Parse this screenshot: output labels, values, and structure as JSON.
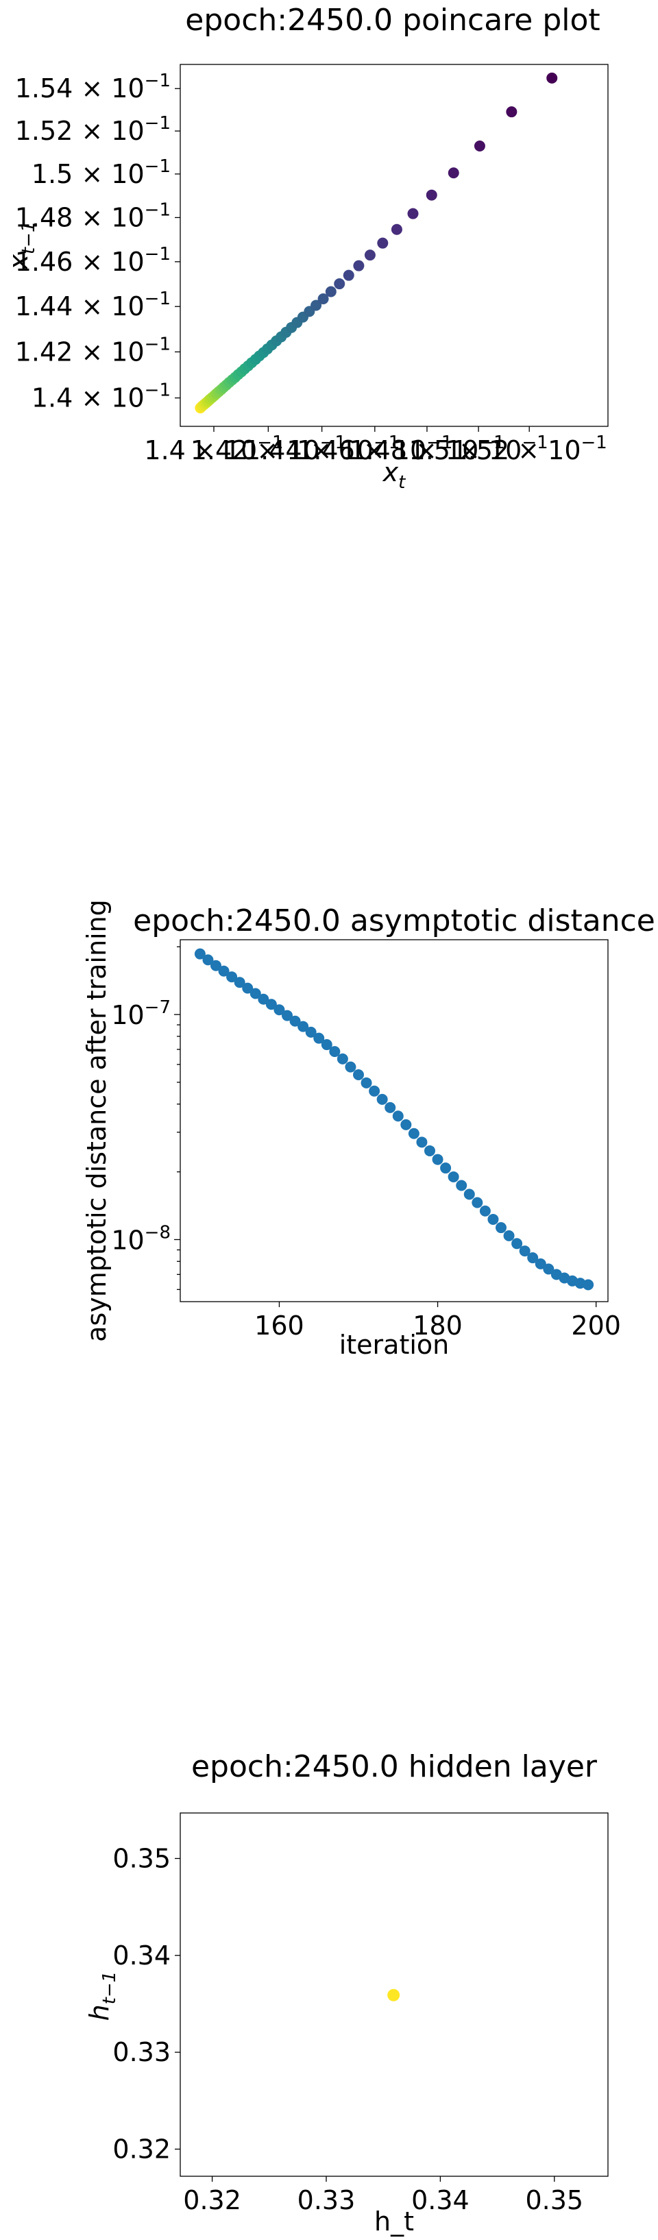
{
  "chart_data": [
    {
      "type": "scatter",
      "title": "epoch:2450.0 poincare plot",
      "xlabel_main": "x",
      "xlabel_sub": "t",
      "ylabel_main": "x",
      "ylabel_sub": "t−1",
      "scale": "log",
      "xlim": [
        0.13878,
        0.15515
      ],
      "ylim": [
        0.13878,
        0.15515
      ],
      "yticks": [
        {
          "value": 0.154,
          "mant": "1.54 × 10",
          "exp": "−1"
        },
        {
          "value": 0.152,
          "mant": "1.52 × 10",
          "exp": "−1"
        },
        {
          "value": 0.15,
          "mant": "1.5 × 10",
          "exp": "−1"
        },
        {
          "value": 0.148,
          "mant": "1.48 × 10",
          "exp": "−1"
        },
        {
          "value": 0.146,
          "mant": "1.46 × 10",
          "exp": "−1"
        },
        {
          "value": 0.144,
          "mant": "1.44 × 10",
          "exp": "−1"
        },
        {
          "value": 0.142,
          "mant": "1.42 × 10",
          "exp": "−1"
        },
        {
          "value": 0.14,
          "mant": "1.4 × 10",
          "exp": "−1"
        }
      ],
      "xticks": [
        {
          "value": 0.14,
          "mant": "1.4 × 10",
          "exp": "−1"
        },
        {
          "value": 0.142,
          "mant": "1.42 × 10",
          "exp": "−1"
        },
        {
          "value": 0.144,
          "mant": "1.44 × 10",
          "exp": "−1"
        },
        {
          "value": 0.146,
          "mant": "1.46 × 10",
          "exp": "−1"
        },
        {
          "value": 0.148,
          "mant": "1.48 × 10",
          "exp": "−1"
        },
        {
          "value": 0.15,
          "mant": "1.5 × 10",
          "exp": "−1"
        },
        {
          "value": 0.152,
          "mant": "1.52 × 10",
          "exp": "−1"
        }
      ],
      "x": [
        0.13951,
        0.13957,
        0.13964,
        0.13971,
        0.13978,
        0.13985,
        0.13993,
        0.14001,
        0.14009,
        0.14018,
        0.14027,
        0.14036,
        0.14046,
        0.14056,
        0.14067,
        0.14078,
        0.14089,
        0.14101,
        0.14113,
        0.14126,
        0.14139,
        0.14153,
        0.14167,
        0.14182,
        0.14197,
        0.14213,
        0.1423,
        0.14248,
        0.14266,
        0.14286,
        0.14307,
        0.14329,
        0.14353,
        0.14378,
        0.14405,
        0.14434,
        0.14466,
        0.14501,
        0.14539,
        0.14582,
        0.1463,
        0.14684,
        0.14746,
        0.14818,
        0.14903,
        0.15005,
        0.1513,
        0.1529
      ],
      "y": [
        0.13957,
        0.13964,
        0.13971,
        0.13978,
        0.13985,
        0.13993,
        0.14001,
        0.14009,
        0.14018,
        0.14027,
        0.14036,
        0.14046,
        0.14056,
        0.14067,
        0.14078,
        0.14089,
        0.14101,
        0.14113,
        0.14126,
        0.14139,
        0.14153,
        0.14167,
        0.14182,
        0.14197,
        0.14213,
        0.1423,
        0.14248,
        0.14266,
        0.14286,
        0.14307,
        0.14329,
        0.14353,
        0.14378,
        0.14405,
        0.14434,
        0.14466,
        0.14501,
        0.14539,
        0.14582,
        0.1463,
        0.14684,
        0.14746,
        0.14818,
        0.14903,
        0.15005,
        0.1513,
        0.1529,
        0.1545
      ],
      "colormap": [
        "#fde725",
        "#b5de2b",
        "#6ece58",
        "#35b779",
        "#1f9e89",
        "#26828e",
        "#31688e",
        "#3e4989",
        "#482878",
        "#440154"
      ]
    },
    {
      "type": "scatter",
      "title": "epoch:2450.0 asymptotic distance",
      "xlabel": "iteration",
      "ylabel": "asymptotic distance after training",
      "yscale": "log",
      "xlim": [
        147.5,
        201.5
      ],
      "ylim": [
        5.3e-09,
        2.15e-07
      ],
      "color": "#1f77b4",
      "xticks": [
        160,
        180,
        200
      ],
      "yticks": [
        {
          "value": 1e-07,
          "mant": "10",
          "exp": "−7"
        },
        {
          "value": 1e-08,
          "mant": "10",
          "exp": "−8"
        }
      ],
      "x_start": 150,
      "x_end": 199,
      "y_values": [
        1.86e-07,
        1.75e-07,
        1.65e-07,
        1.56e-07,
        1.47e-07,
        1.39e-07,
        1.31e-07,
        1.24e-07,
        1.17e-07,
        1.11e-07,
        1.05e-07,
        9.9e-08,
        9.35e-08,
        8.85e-08,
        8.35e-08,
        7.85e-08,
        7.35e-08,
        6.85e-08,
        6.35e-08,
        5.85e-08,
        5.4e-08,
        4.97e-08,
        4.57e-08,
        4.2e-08,
        3.86e-08,
        3.54e-08,
        3.24e-08,
        2.96e-08,
        2.71e-08,
        2.48e-08,
        2.27e-08,
        2.08e-08,
        1.9e-08,
        1.74e-08,
        1.59e-08,
        1.46e-08,
        1.34e-08,
        1.23e-08,
        1.13e-08,
        1.04e-08,
        9.6e-09,
        8.9e-09,
        8.3e-09,
        7.8e-09,
        7.4e-09,
        7e-09,
        6.75e-09,
        6.55e-09,
        6.4e-09,
        6.3e-09
      ]
    },
    {
      "type": "scatter",
      "title": "epoch:2450.0 hidden layer",
      "xlabel": "h_t",
      "ylabel_main": "h",
      "ylabel_sub": "t−1",
      "xlim": [
        0.3172,
        0.3547
      ],
      "ylim": [
        0.3172,
        0.3547
      ],
      "xticks": [
        0.32,
        0.33,
        0.34,
        0.35
      ],
      "yticks": [
        0.32,
        0.33,
        0.34,
        0.35
      ],
      "points": [
        {
          "x": 0.3359,
          "y": 0.3359
        }
      ],
      "color": "#fde725"
    }
  ]
}
